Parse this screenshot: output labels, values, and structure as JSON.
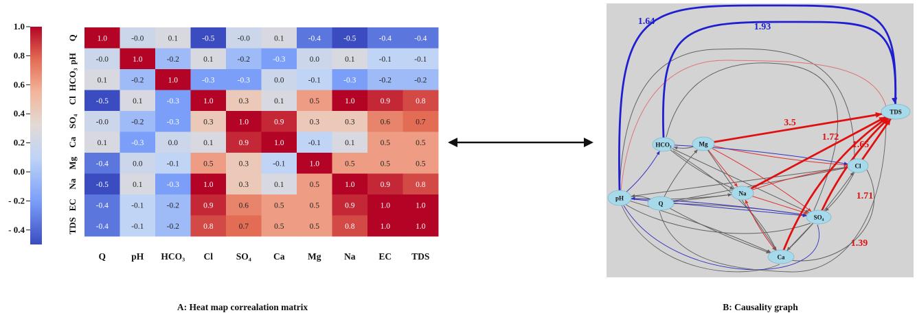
{
  "heatmap": {
    "caption": "A: Heat map correalation matrix",
    "colorbar_ticks": [
      "1.0",
      "0.8",
      "0.6",
      "0.4",
      "0.2",
      "0.0",
      "- 0.2",
      "- 0.4"
    ],
    "colormap": {
      "low": "#3b4cc0",
      "mid": "#dddddd",
      "high": "#b40426"
    }
  },
  "graph": {
    "caption": "B: Causality graph",
    "panel_background": "#d3d3d3",
    "node_fill": "#a6d9ea",
    "nodes": [
      {
        "id": "TDS",
        "label": "TDS"
      },
      {
        "id": "HCO3",
        "label": "HCO₃"
      },
      {
        "id": "Mg",
        "label": "Mg"
      },
      {
        "id": "Cl",
        "label": "Cl"
      },
      {
        "id": "pH",
        "label": "pH"
      },
      {
        "id": "Q",
        "label": "Q"
      },
      {
        "id": "Na",
        "label": "Na"
      },
      {
        "id": "SO4",
        "label": "SO₄"
      },
      {
        "id": "Ca",
        "label": "Ca"
      }
    ],
    "weighted_edges": [
      {
        "from": "pH",
        "to": "TDS",
        "weight": "1.64",
        "color": "#1f1fcf"
      },
      {
        "from": "HCO3",
        "to": "TDS",
        "weight": "1.93",
        "color": "#1f1fcf"
      },
      {
        "from": "Mg",
        "to": "TDS",
        "weight": "3.5",
        "color": "#e01010"
      },
      {
        "from": "Na",
        "to": "TDS",
        "weight": "1.72",
        "color": "#e01010"
      },
      {
        "from": "Cl",
        "to": "TDS",
        "weight": "1.65",
        "color": "#e01010"
      },
      {
        "from": "SO4",
        "to": "TDS",
        "weight": "1.71",
        "color": "#e01010"
      },
      {
        "from": "Ca",
        "to": "TDS",
        "weight": "1.39",
        "color": "#e01010"
      }
    ],
    "minor_edges": [
      {
        "from": "Q",
        "to": "Mg",
        "color": "#606060"
      },
      {
        "from": "Q",
        "to": "Na",
        "color": "#606060"
      },
      {
        "from": "Q",
        "to": "Ca",
        "color": "#606060"
      },
      {
        "from": "Q",
        "to": "SO4",
        "color": "#606060"
      },
      {
        "from": "Q",
        "to": "Cl",
        "color": "#606060"
      },
      {
        "from": "Q",
        "to": "pH",
        "color": "#606060"
      },
      {
        "from": "Mg",
        "to": "HCO3",
        "color": "#606060"
      },
      {
        "from": "Mg",
        "to": "Na",
        "color": "#e03030"
      },
      {
        "from": "Mg",
        "to": "Cl",
        "color": "#e03030"
      },
      {
        "from": "Mg",
        "to": "SO4",
        "color": "#e03030"
      },
      {
        "from": "Mg",
        "to": "Ca",
        "color": "#606060"
      },
      {
        "from": "HCO3",
        "to": "Na",
        "color": "#606060"
      },
      {
        "from": "HCO3",
        "to": "Cl",
        "color": "#3030c0"
      },
      {
        "from": "HCO3",
        "to": "SO4",
        "color": "#606060"
      },
      {
        "from": "pH",
        "to": "HCO3",
        "color": "#3030c0"
      },
      {
        "from": "pH",
        "to": "Ca",
        "color": "#606060"
      },
      {
        "from": "pH",
        "to": "SO4",
        "color": "#3030c0"
      },
      {
        "from": "pH",
        "to": "Na",
        "color": "#606060"
      },
      {
        "from": "Na",
        "to": "Cl",
        "color": "#e03030"
      },
      {
        "from": "Na",
        "to": "SO4",
        "color": "#e03030"
      },
      {
        "from": "Na",
        "to": "Ca",
        "color": "#606060"
      },
      {
        "from": "Cl",
        "to": "SO4",
        "color": "#606060"
      },
      {
        "from": "SO4",
        "to": "Ca",
        "color": "#606060"
      },
      {
        "from": "Ca",
        "to": "Cl",
        "color": "#606060"
      },
      {
        "from": "Ca",
        "to": "Na",
        "color": "#e03030"
      },
      {
        "from": "Cl",
        "to": "pH",
        "color": "#606060"
      },
      {
        "from": "SO4",
        "to": "pH",
        "color": "#3030c0"
      }
    ],
    "outer_arcs": [
      {
        "from": "Cl",
        "to": "pH",
        "color": "#606060"
      },
      {
        "from": "SO4",
        "to": "HCO3",
        "color": "#606060"
      },
      {
        "from": "Ca",
        "to": "HCO3",
        "color": "#606060"
      },
      {
        "from": "SO4",
        "to": "pH",
        "color": "#606060"
      },
      {
        "from": "TDS",
        "to": "pH",
        "color": "#e07070"
      },
      {
        "from": "Cl",
        "to": "Ca",
        "color": "#606060"
      }
    ]
  },
  "chart_data": {
    "type": "heatmap",
    "title": "A: Heat map correalation matrix",
    "row_labels": [
      "Q",
      "pH",
      "HCO₃",
      "Cl",
      "SO₄",
      "Ca",
      "Mg",
      "Na",
      "EC",
      "TDS"
    ],
    "col_labels": [
      "Q",
      "pH",
      "HCO₃",
      "Cl",
      "SO₄",
      "Ca",
      "Mg",
      "Na",
      "EC",
      "TDS"
    ],
    "values": [
      [
        1.0,
        -0.0,
        0.1,
        -0.5,
        -0.0,
        0.1,
        -0.4,
        -0.5,
        -0.4,
        -0.4
      ],
      [
        -0.0,
        1.0,
        -0.2,
        0.1,
        -0.2,
        -0.3,
        0.0,
        0.1,
        -0.1,
        -0.1
      ],
      [
        0.1,
        -0.2,
        1.0,
        -0.3,
        -0.3,
        0.0,
        -0.1,
        -0.3,
        -0.2,
        -0.2
      ],
      [
        -0.5,
        0.1,
        -0.3,
        1.0,
        0.3,
        0.1,
        0.5,
        1.0,
        0.9,
        0.8
      ],
      [
        -0.0,
        -0.2,
        -0.3,
        0.3,
        1.0,
        0.9,
        0.3,
        0.3,
        0.6,
        0.7
      ],
      [
        0.1,
        -0.3,
        0.0,
        0.1,
        0.9,
        1.0,
        -0.1,
        0.1,
        0.5,
        0.5
      ],
      [
        -0.4,
        0.0,
        -0.1,
        0.5,
        0.3,
        -0.1,
        1.0,
        0.5,
        0.5,
        0.5
      ],
      [
        -0.5,
        0.1,
        -0.3,
        1.0,
        0.3,
        0.1,
        0.5,
        1.0,
        0.9,
        0.8
      ],
      [
        -0.4,
        -0.1,
        -0.2,
        0.9,
        0.6,
        0.5,
        0.5,
        0.9,
        1.0,
        1.0
      ],
      [
        -0.4,
        -0.1,
        -0.2,
        0.8,
        0.7,
        0.5,
        0.5,
        0.8,
        1.0,
        1.0
      ]
    ],
    "value_labels": [
      [
        "1.0",
        "-0.0",
        "0.1",
        "-0.5",
        "-0.0",
        "0.1",
        "-0.4",
        "-0.5",
        "-0.4",
        "-0.4"
      ],
      [
        "-0.0",
        "1.0",
        "-0.2",
        "0.1",
        "-0.2",
        "-0.3",
        "0.0",
        "0.1",
        "-0.1",
        "-0.1"
      ],
      [
        "0.1",
        "-0.2",
        "1.0",
        "-0.3",
        "-0.3",
        "0.0",
        "-0.1",
        "-0.3",
        "-0.2",
        "-0.2"
      ],
      [
        "-0.5",
        "0.1",
        "-0.3",
        "1.0",
        "0.3",
        "0.1",
        "0.5",
        "1.0",
        "0.9",
        "0.8"
      ],
      [
        "-0.0",
        "-0.2",
        "-0.3",
        "0.3",
        "1.0",
        "0.9",
        "0.3",
        "0.3",
        "0.6",
        "0.7"
      ],
      [
        "0.1",
        "-0.3",
        "0.0",
        "0.1",
        "0.9",
        "1.0",
        "-0.1",
        "0.1",
        "0.5",
        "0.5"
      ],
      [
        "-0.4",
        "0.0",
        "-0.1",
        "0.5",
        "0.3",
        "-0.1",
        "1.0",
        "0.5",
        "0.5",
        "0.5"
      ],
      [
        "-0.5",
        "0.1",
        "-0.3",
        "1.0",
        "0.3",
        "0.1",
        "0.5",
        "1.0",
        "0.9",
        "0.8"
      ],
      [
        "-0.4",
        "-0.1",
        "-0.2",
        "0.9",
        "0.6",
        "0.5",
        "0.5",
        "0.9",
        "1.0",
        "1.0"
      ],
      [
        "-0.4",
        "-0.1",
        "-0.2",
        "0.8",
        "0.7",
        "0.5",
        "0.5",
        "0.8",
        "1.0",
        "1.0"
      ]
    ],
    "colorbar_range": [
      -0.5,
      1.0
    ]
  }
}
